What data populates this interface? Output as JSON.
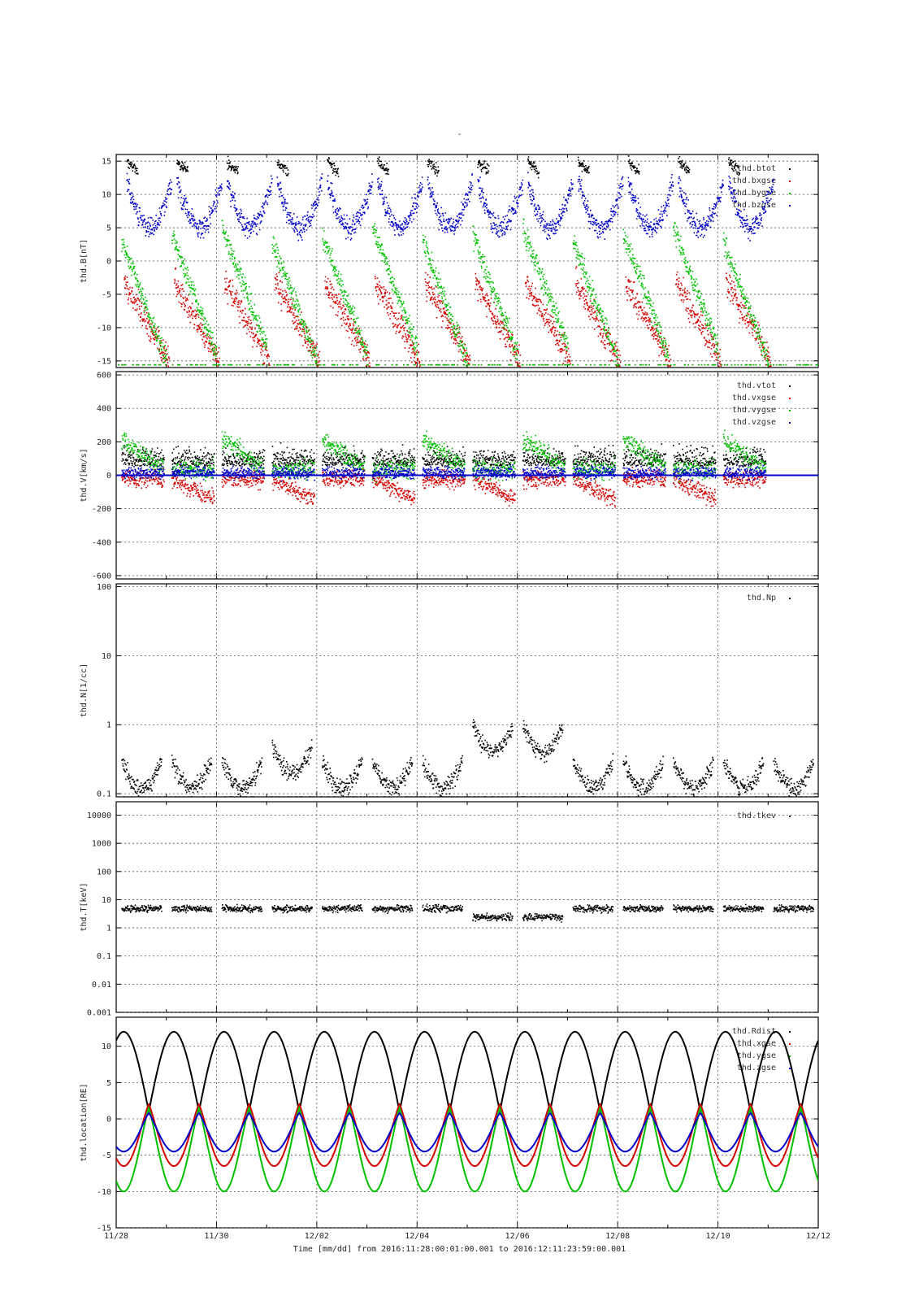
{
  "title": "-",
  "footer": "Time [mm/dd]  from 2016:11:28:00:01:00.001  to  2016:12:11:23:59:00.001",
  "colors": {
    "black": "#000000",
    "red": "#d40000",
    "green": "#00c000",
    "blue": "#0000c8",
    "grid": "#555555"
  },
  "chart_data": [
    {
      "type": "scatter",
      "ylabel": "thd.B[nT]",
      "ylim": [
        -16,
        16
      ],
      "yticks": [
        15,
        10,
        5,
        0,
        -5,
        -10,
        -15
      ],
      "ytick_labels": [
        "15",
        "10",
        "5",
        "0",
        "-5",
        "-10",
        "-15"
      ],
      "xlim": [
        0,
        14
      ],
      "xticks": [
        0,
        2,
        4,
        6,
        8,
        10,
        12,
        14
      ],
      "xtick_labels": [
        "11/28",
        "11/30",
        "12/02",
        "12/04",
        "12/06",
        "12/08",
        "12/10",
        "12/12"
      ],
      "legend": "top-right",
      "series": [
        {
          "name": "thd.btot",
          "color": "#000000"
        },
        {
          "name": "thd.bxgse",
          "color": "#d40000"
        },
        {
          "name": "thd.bygse",
          "color": "#00c000"
        },
        {
          "name": "thd.bzgse",
          "color": "#0000c8"
        }
      ]
    },
    {
      "type": "scatter",
      "ylabel": "thd.V[km/s]",
      "ylim": [
        -620,
        620
      ],
      "yticks": [
        600,
        400,
        200,
        0,
        -200,
        -400,
        -600
      ],
      "ytick_labels": [
        "600",
        "400",
        "200",
        "0",
        "-200",
        "-400",
        "-600"
      ],
      "xlim": [
        0,
        14
      ],
      "xticks": [
        0,
        2,
        4,
        6,
        8,
        10,
        12,
        14
      ],
      "legend": "top-right",
      "series": [
        {
          "name": "thd.vtot",
          "color": "#000000"
        },
        {
          "name": "thd.vxgse",
          "color": "#d40000"
        },
        {
          "name": "thd.vygse",
          "color": "#00c000"
        },
        {
          "name": "thd.vzgse",
          "color": "#0000c8"
        }
      ]
    },
    {
      "type": "scatter",
      "ylabel": "thd.N[1/cc]",
      "scale": "log",
      "ylim": [
        0.09,
        110
      ],
      "yticks": [
        100,
        10,
        1,
        0.1
      ],
      "ytick_labels": [
        "100",
        "10",
        "1",
        "0.1"
      ],
      "xlim": [
        0,
        14
      ],
      "xticks": [
        0,
        2,
        4,
        6,
        8,
        10,
        12,
        14
      ],
      "legend": "top-right",
      "series": [
        {
          "name": "thd.Np",
          "color": "#000000"
        }
      ]
    },
    {
      "type": "scatter",
      "ylabel": "thd.T[keV]",
      "scale": "log",
      "ylim": [
        0.001,
        30000
      ],
      "yticks": [
        10000,
        1000,
        100,
        10,
        1,
        0.1,
        0.01,
        0.001
      ],
      "ytick_labels": [
        "10000",
        "1000",
        "100",
        "10",
        "1",
        "0.1",
        "0.01",
        "0.001"
      ],
      "xlim": [
        0,
        14
      ],
      "xticks": [
        0,
        2,
        4,
        6,
        8,
        10,
        12,
        14
      ],
      "legend": "top-right",
      "series": [
        {
          "name": "thd.tkev",
          "color": "#000000"
        }
      ]
    },
    {
      "type": "line",
      "ylabel": "thd.location[RE]",
      "ylim": [
        -15,
        14
      ],
      "yticks": [
        10,
        5,
        0,
        -5,
        -10,
        -15
      ],
      "ytick_labels": [
        "10",
        "5",
        "0",
        "-5",
        "-10",
        "-15"
      ],
      "xlim": [
        0,
        14
      ],
      "xticks": [
        0,
        2,
        4,
        6,
        8,
        10,
        12,
        14
      ],
      "xtick_labels": [
        "11/28",
        "11/30",
        "12/02",
        "12/04",
        "12/06",
        "12/08",
        "12/10",
        "12/12"
      ],
      "legend": "top-right",
      "orbit_period_days": 1,
      "series": [
        {
          "name": "thd.Rdist",
          "color": "#000000",
          "min": 1,
          "max": 12
        },
        {
          "name": "thd.xgse",
          "color": "#d40000",
          "min": -6.5,
          "max": 2
        },
        {
          "name": "thd.ygse",
          "color": "#00c000",
          "min": -10,
          "max": 1.5
        },
        {
          "name": "thd.zgse",
          "color": "#0000c8",
          "min": -4.5,
          "max": 0.8
        }
      ]
    }
  ]
}
